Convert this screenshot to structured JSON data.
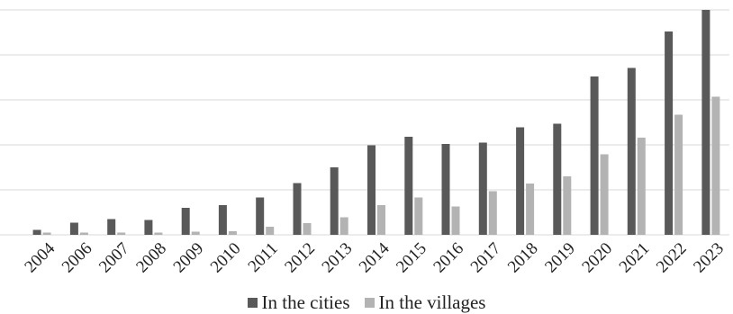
{
  "chart_data": {
    "type": "bar",
    "categories": [
      "2004",
      "2006",
      "2007",
      "2008",
      "2009",
      "2010",
      "2011",
      "2012",
      "2013",
      "2014",
      "2015",
      "2016",
      "2017",
      "2018",
      "2019",
      "2020",
      "2021",
      "2022",
      "2023"
    ],
    "series": [
      {
        "name": "In the cities",
        "color": "#595959",
        "values": [
          0.11,
          0.27,
          0.35,
          0.33,
          0.6,
          0.66,
          0.83,
          1.15,
          1.5,
          1.99,
          2.18,
          2.02,
          2.05,
          2.39,
          2.47,
          3.52,
          3.71,
          4.52,
          5.0
        ]
      },
      {
        "name": "In the villages",
        "color": "#b3b3b3",
        "values": [
          0.05,
          0.05,
          0.05,
          0.05,
          0.07,
          0.08,
          0.18,
          0.26,
          0.39,
          0.66,
          0.83,
          0.63,
          0.97,
          1.14,
          1.3,
          1.79,
          2.16,
          2.67,
          3.07
        ]
      }
    ],
    "ylim": [
      0,
      5
    ],
    "y_gridlines": [
      0,
      1,
      2,
      3,
      4,
      5
    ],
    "grid": true,
    "y_tick_labels_visible": false,
    "legend_position": "bottom"
  }
}
